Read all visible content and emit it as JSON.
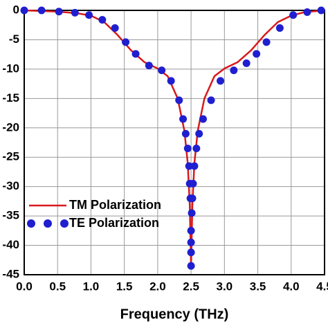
{
  "chart_data": {
    "type": "line",
    "x_label": "Frequency (THz)",
    "xlim": [
      0,
      4.5
    ],
    "xticks": [
      {
        "value": 0,
        "label": "0.0"
      },
      0.5,
      {
        "value": 1,
        "label": "1.0"
      },
      1.5,
      {
        "value": 2,
        "label": "2.0"
      },
      2.5,
      {
        "value": 3,
        "label": "3.0"
      },
      3.5,
      {
        "value": 4,
        "label": "4.0"
      },
      4.5
    ],
    "ylim": [
      -45,
      0
    ],
    "yticks": [
      0,
      -5,
      -10,
      -15,
      -20,
      -25,
      -30,
      -35,
      -40,
      -45
    ],
    "grid": true,
    "legend": "lower-left",
    "series": [
      {
        "name": "TM Polarization",
        "color": "#d7191c",
        "style": "line",
        "x": [
          0,
          0.5,
          0.8,
          1.0,
          1.2,
          1.4,
          1.6,
          1.8,
          2.0,
          2.15,
          2.3,
          2.4,
          2.45,
          2.48,
          2.5,
          2.52,
          2.55,
          2.6,
          2.7,
          2.85,
          3.0,
          3.2,
          3.4,
          3.6,
          3.8,
          4.0,
          4.2,
          4.5
        ],
        "values": [
          0,
          -0.2,
          -0.5,
          -0.9,
          -2.0,
          -4.2,
          -6.8,
          -8.8,
          -9.9,
          -11.2,
          -15.0,
          -20.5,
          -26,
          -33,
          -43.5,
          -33,
          -26,
          -20.5,
          -15.0,
          -11.2,
          -9.9,
          -8.8,
          -6.8,
          -4.2,
          -2.0,
          -0.9,
          -0.3,
          0
        ]
      },
      {
        "name": "TE Polarization",
        "color": "#1f1fd0",
        "style": "dots",
        "x": [
          0,
          0.26,
          0.52,
          0.76,
          0.97,
          1.17,
          1.36,
          1.52,
          1.67,
          1.87,
          2.06,
          2.2,
          2.32,
          2.38,
          2.42,
          2.45,
          2.47,
          2.48,
          2.49,
          2.5,
          2.5,
          2.5,
          2.5,
          2.51,
          2.52,
          2.53,
          2.55,
          2.58,
          2.62,
          2.68,
          2.8,
          2.94,
          3.14,
          3.33,
          3.48,
          3.63,
          3.83,
          4.03,
          4.24,
          4.45
        ],
        "values": [
          0,
          0,
          -0.2,
          -0.4,
          -0.8,
          -1.6,
          -3.0,
          -5.4,
          -7.4,
          -9.4,
          -10.2,
          -12.0,
          -15.3,
          -18.5,
          -21,
          -23.5,
          -26.5,
          -29.5,
          -32,
          -37.5,
          -39.5,
          -41.2,
          -43.5,
          -34.5,
          -32,
          -29.5,
          -26.5,
          -23.5,
          -21,
          -18.5,
          -15.3,
          -12.0,
          -10.2,
          -9.0,
          -7.4,
          -5.4,
          -3.0,
          -0.8,
          -0.3,
          0
        ]
      }
    ]
  }
}
